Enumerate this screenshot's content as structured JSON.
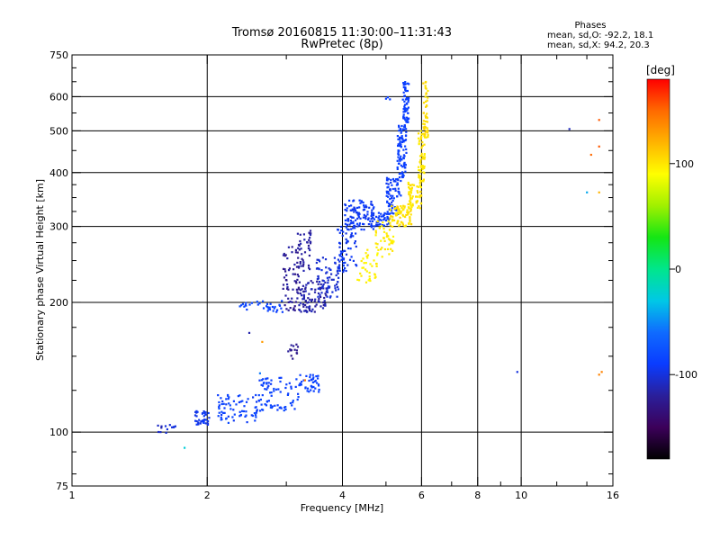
{
  "chart_data": {
    "type": "scatter",
    "title": "Tromsø 20160815 11:30:00–11:31:43",
    "subtitle": "RwPretec (8p)",
    "xlabel": "Frequency [MHz]",
    "ylabel": "Stationary phase Virtual Height [km]",
    "xscale": "log",
    "yscale": "log",
    "xlim": [
      1,
      16
    ],
    "ylim": [
      75,
      750
    ],
    "xticks": [
      1,
      2,
      4,
      6,
      8,
      10,
      16
    ],
    "xtick_labels": [
      "1",
      "2",
      "4",
      "6",
      "8",
      "10",
      "16"
    ],
    "xgrid": [
      2,
      4,
      6,
      8,
      10
    ],
    "xminor": [
      3,
      5,
      7,
      9,
      12,
      14
    ],
    "yticks": [
      75,
      100,
      200,
      300,
      400,
      500,
      600,
      750
    ],
    "ytick_labels": [
      "75",
      "100",
      "200",
      "300",
      "400",
      "500",
      "600",
      "750"
    ],
    "ygrid": [
      100,
      200,
      300,
      400,
      500,
      600
    ],
    "yminor": [
      80,
      90,
      125,
      150,
      175,
      225,
      250,
      275,
      325,
      350,
      375,
      450,
      550,
      650,
      700
    ],
    "legend": {
      "title": "Phases",
      "line1": "mean, sd,O: -92.2, 18.1",
      "line2": "mean, sd,X:  94.2, 20.3"
    },
    "colorbar": {
      "label": "[deg]",
      "range": [
        -180,
        180
      ],
      "ticks": [
        100,
        0,
        -100
      ],
      "tick_labels": [
        "100",
        "0",
        "-100"
      ],
      "stops": [
        "#000000",
        "#3c005a",
        "#2a1f9a",
        "#0a3cff",
        "#0f6bff",
        "#00c8e6",
        "#00e68c",
        "#14e614",
        "#a0f000",
        "#ffff00",
        "#ffb400",
        "#ff6a00",
        "#ff0000"
      ]
    },
    "series": [
      {
        "name": "O-mode trace segments",
        "clusters": [
          {
            "f": [
              1.55,
              1.7
            ],
            "h": [
              99,
              104
            ],
            "n": 14,
            "phase": [
              -115,
              -95
            ]
          },
          {
            "f": [
              1.88,
              2.02
            ],
            "h": [
              104,
              112
            ],
            "n": 35,
            "phase": [
              -100,
              -90
            ]
          },
          {
            "f": [
              2.1,
              2.6
            ],
            "h": [
              105,
              122
            ],
            "n": 70,
            "phase": [
              -95,
              -80
            ]
          },
          {
            "f": [
              2.6,
              3.2
            ],
            "h": [
              112,
              134
            ],
            "n": 75,
            "phase": [
              -92,
              -80
            ]
          },
          {
            "f": [
              3.2,
              3.55
            ],
            "h": [
              124,
              136
            ],
            "n": 40,
            "phase": [
              -90,
              -82
            ]
          },
          {
            "f": [
              2.35,
              2.95
            ],
            "h": [
              190,
              202
            ],
            "n": 35,
            "phase": [
              -90,
              -80
            ]
          },
          {
            "f": [
              3.0,
              3.2
            ],
            "h": [
              148,
              160
            ],
            "n": 14,
            "phase": [
              -130,
              -120
            ]
          },
          {
            "f": [
              2.95,
              3.2
            ],
            "h": [
              190,
              270
            ],
            "n": 60,
            "phase": [
              -130,
              -115
            ]
          },
          {
            "f": [
              3.18,
              3.4
            ],
            "h": [
              235,
              295
            ],
            "n": 45,
            "phase": [
              -125,
              -112
            ]
          },
          {
            "f": [
              3.2,
              3.7
            ],
            "h": [
              190,
              225
            ],
            "n": 90,
            "phase": [
              -122,
              -110
            ]
          },
          {
            "f": [
              3.5,
              3.95
            ],
            "h": [
              205,
              255
            ],
            "n": 70,
            "phase": [
              -108,
              -98
            ]
          },
          {
            "f": [
              3.9,
              4.3
            ],
            "h": [
              235,
              305
            ],
            "n": 60,
            "phase": [
              -100,
              -90
            ]
          },
          {
            "f": [
              4.05,
              4.7
            ],
            "h": [
              295,
              345
            ],
            "n": 110,
            "phase": [
              -98,
              -88
            ]
          },
          {
            "f": [
              4.7,
              5.1
            ],
            "h": [
              300,
              330
            ],
            "n": 40,
            "phase": [
              -95,
              -85
            ]
          },
          {
            "f": [
              5.0,
              5.4
            ],
            "h": [
              320,
              390
            ],
            "n": 80,
            "phase": [
              -95,
              -85
            ]
          },
          {
            "f": [
              5.3,
              5.55
            ],
            "h": [
              390,
              520
            ],
            "n": 90,
            "phase": [
              -92,
              -84
            ]
          },
          {
            "f": [
              5.45,
              5.62
            ],
            "h": [
              520,
              650
            ],
            "n": 60,
            "phase": [
              -92,
              -84
            ]
          },
          {
            "f": [
              4.9,
              5.1
            ],
            "h": [
              590,
              600
            ],
            "n": 3,
            "phase": [
              -90,
              -85
            ]
          }
        ]
      },
      {
        "name": "X-mode trace segments",
        "clusters": [
          {
            "f": [
              4.3,
              4.8
            ],
            "h": [
              220,
              265
            ],
            "n": 35,
            "phase": [
              90,
              100
            ]
          },
          {
            "f": [
              4.7,
              5.2
            ],
            "h": [
              255,
              310
            ],
            "n": 45,
            "phase": [
              92,
              102
            ]
          },
          {
            "f": [
              5.1,
              5.7
            ],
            "h": [
              300,
              335
            ],
            "n": 70,
            "phase": [
              95,
              110
            ]
          },
          {
            "f": [
              5.6,
              6.0
            ],
            "h": [
              330,
              380
            ],
            "n": 60,
            "phase": [
              95,
              105
            ]
          },
          {
            "f": [
              5.9,
              6.1
            ],
            "h": [
              380,
              500
            ],
            "n": 60,
            "phase": [
              95,
              105
            ]
          },
          {
            "f": [
              6.05,
              6.2
            ],
            "h": [
              480,
              650
            ],
            "n": 45,
            "phase": [
              98,
              108
            ]
          }
        ]
      },
      {
        "name": "Isolated points",
        "points": [
          {
            "f": 1.78,
            "h": 92,
            "phase": -25
          },
          {
            "f": 2.48,
            "h": 170,
            "phase": -115
          },
          {
            "f": 2.65,
            "h": 162,
            "phase": 130
          },
          {
            "f": 2.62,
            "h": 137,
            "phase": -55
          },
          {
            "f": 3.3,
            "h": 132,
            "phase": 145
          },
          {
            "f": 9.8,
            "h": 138,
            "phase": -100
          },
          {
            "f": 12.8,
            "h": 505,
            "phase": -110
          },
          {
            "f": 14.0,
            "h": 360,
            "phase": -40
          },
          {
            "f": 14.3,
            "h": 440,
            "phase": 150
          },
          {
            "f": 14.9,
            "h": 530,
            "phase": 155
          },
          {
            "f": 14.9,
            "h": 460,
            "phase": 155
          },
          {
            "f": 14.9,
            "h": 360,
            "phase": 120
          },
          {
            "f": 14.9,
            "h": 136,
            "phase": 140
          },
          {
            "f": 15.1,
            "h": 138,
            "phase": 140
          }
        ]
      }
    ]
  }
}
